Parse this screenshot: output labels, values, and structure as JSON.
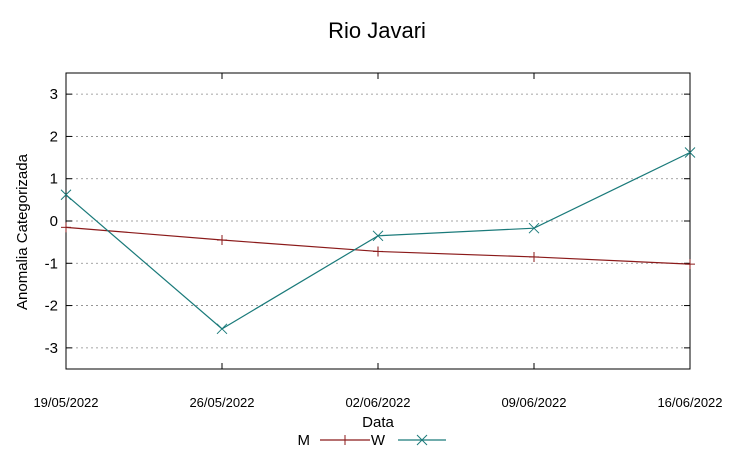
{
  "chart_data": {
    "type": "line",
    "title": "Rio Javari",
    "xlabel": "Data",
    "ylabel": "Anomalia Categorizada",
    "categories": [
      "19/05/2022",
      "26/05/2022",
      "02/06/2022",
      "09/06/2022",
      "16/06/2022"
    ],
    "yticks": [
      "3",
      "2",
      "1",
      "0",
      "-1",
      "-2",
      "-3"
    ],
    "ylim": [
      -3.5,
      3.5
    ],
    "grid": true,
    "legend": "bottom-center",
    "series": [
      {
        "name": "M",
        "color": "#8b1a1a",
        "marker": "plus",
        "values": [
          -0.15,
          -0.45,
          -0.72,
          -0.85,
          -1.02
        ]
      },
      {
        "name": "W",
        "color": "#1a7a7a",
        "marker": "cross",
        "values": [
          0.62,
          -2.55,
          -0.35,
          -0.17,
          1.62
        ]
      }
    ]
  }
}
